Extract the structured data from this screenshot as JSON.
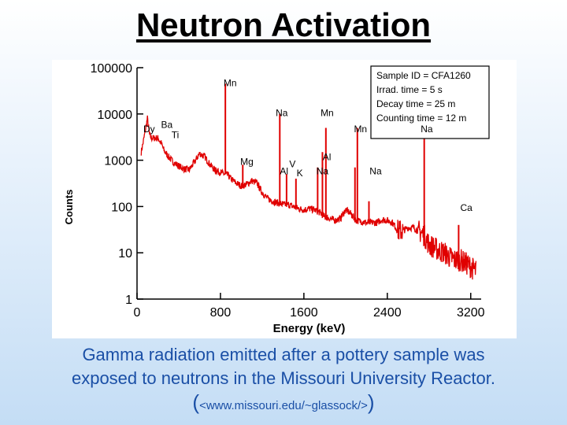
{
  "slide": {
    "title": "Neutron Activation",
    "caption_line1": "Gamma radiation emitted after a pottery sample was",
    "caption_line2": "exposed to neutrons in the Missouri University Reactor.",
    "caption_open": "(",
    "caption_url": "<www.missouri.edu/~glassock/>",
    "caption_close": ")"
  },
  "colors": {
    "spectrum": "#e00000",
    "axes": "#000000",
    "caption": "#1a4fa6"
  },
  "chart_data": {
    "type": "line",
    "xlabel": "Energy (keV)",
    "ylabel": "Counts",
    "x_scale": "linear",
    "y_scale": "log",
    "xlim": [
      0,
      3300
    ],
    "ylim": [
      1,
      100000
    ],
    "x_ticks": [
      {
        "value": 0,
        "label": "0"
      },
      {
        "value": 800,
        "label": "800"
      },
      {
        "value": 1600,
        "label": "1600"
      },
      {
        "value": 2400,
        "label": "2400"
      },
      {
        "value": 3200,
        "label": "3200"
      }
    ],
    "y_ticks": [
      {
        "value": 1,
        "label": "1"
      },
      {
        "value": 10,
        "label": "10"
      },
      {
        "value": 100,
        "label": "100"
      },
      {
        "value": 1000,
        "label": "1000"
      },
      {
        "value": 10000,
        "label": "10000"
      },
      {
        "value": 100000,
        "label": "100000"
      }
    ],
    "series": [
      {
        "x": [
          40,
          60,
          80,
          100,
          120,
          140,
          170,
          200,
          230,
          260,
          300,
          350,
          400,
          450,
          500,
          550,
          600,
          650,
          700,
          750,
          800,
          840,
          870,
          900,
          950,
          1000,
          1050,
          1100,
          1150,
          1200,
          1250,
          1300,
          1350,
          1400,
          1450,
          1500,
          1550,
          1600,
          1650,
          1700,
          1750,
          1800,
          1850,
          1900,
          1950,
          2000,
          2050,
          2100,
          2150,
          2200,
          2250,
          2300,
          2350,
          2400,
          2450,
          2500,
          2550,
          2600,
          2650,
          2700,
          2750,
          2800,
          2850,
          2900,
          2950,
          3000,
          3050,
          3100,
          3150,
          3200,
          3250
        ],
        "y": [
          1500,
          2500,
          4500,
          8000,
          3500,
          3000,
          3000,
          3000,
          2400,
          1600,
          1200,
          900,
          750,
          650,
          620,
          900,
          1400,
          1200,
          800,
          600,
          550,
          500,
          480,
          400,
          320,
          280,
          300,
          360,
          320,
          200,
          150,
          130,
          120,
          110,
          110,
          100,
          90,
          85,
          90,
          85,
          75,
          60,
          55,
          50,
          55,
          85,
          70,
          50,
          48,
          45,
          45,
          45,
          52,
          50,
          45,
          30,
          30,
          35,
          35,
          30,
          25,
          15,
          13,
          11,
          10,
          8,
          7,
          7,
          6,
          5,
          4
        ]
      }
    ],
    "peaks": [
      {
        "x": 847,
        "y": 45000
      },
      {
        "x": 1811,
        "y": 5000
      },
      {
        "x": 2113,
        "y": 5000
      },
      {
        "x": 1369,
        "y": 10000
      },
      {
        "x": 2754,
        "y": 3800
      },
      {
        "x": 1014,
        "y": 800
      },
      {
        "x": 1778,
        "y": 1500
      },
      {
        "x": 1434,
        "y": 500
      },
      {
        "x": 1524,
        "y": 400
      },
      {
        "x": 1732,
        "y": 700
      },
      {
        "x": 2224,
        "y": 130
      },
      {
        "x": 2090,
        "y": 700
      },
      {
        "x": 3084,
        "y": 40
      },
      {
        "x": 754,
        "y": 700
      }
    ],
    "peak_labels": [
      {
        "label": "Mn",
        "x": 830,
        "y": 40000
      },
      {
        "label": "Na",
        "x": 1330,
        "y": 9000
      },
      {
        "label": "Mn",
        "x": 1760,
        "y": 9000
      },
      {
        "label": "Mn",
        "x": 2080,
        "y": 4000
      },
      {
        "label": "Na",
        "x": 2720,
        "y": 4000
      },
      {
        "label": "Dy",
        "x": 60,
        "y": 4000
      },
      {
        "label": "Ba",
        "x": 230,
        "y": 5000
      },
      {
        "label": "Ti",
        "x": 330,
        "y": 3000
      },
      {
        "label": "Mg",
        "x": 990,
        "y": 800
      },
      {
        "label": "Al",
        "x": 1370,
        "y": 500
      },
      {
        "label": "V",
        "x": 1460,
        "y": 700
      },
      {
        "label": "Al",
        "x": 1780,
        "y": 1000
      },
      {
        "label": "K",
        "x": 1530,
        "y": 450
      },
      {
        "label": "Na",
        "x": 1720,
        "y": 500
      },
      {
        "label": "Na",
        "x": 2230,
        "y": 500
      },
      {
        "label": "Ca",
        "x": 3100,
        "y": 80
      }
    ],
    "legend": {
      "lines": [
        "Sample ID = CFA1260",
        "Irrad. time     =   5 s",
        "Decay time     = 25 m",
        "Counting time = 12 m"
      ],
      "placement": "top-right"
    }
  }
}
